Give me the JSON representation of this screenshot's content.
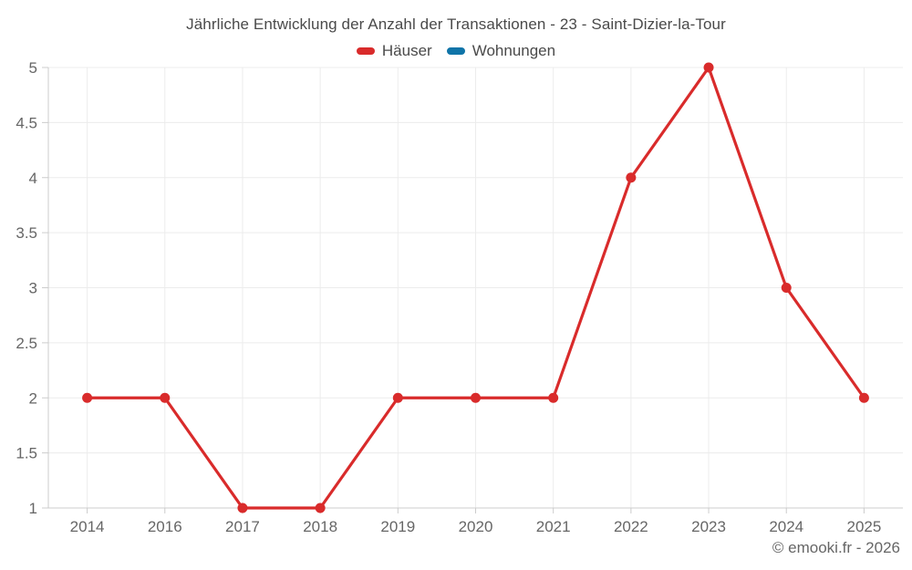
{
  "title": "Jährliche Entwicklung der Anzahl der Transaktionen - 23 - Saint-Dizier-la-Tour",
  "copyright": "© emooki.fr - 2026",
  "legend": {
    "marker_shape": "rounded-rect",
    "items": [
      {
        "label": "Häuser",
        "color": "#d92b2b"
      },
      {
        "label": "Wohnungen",
        "color": "#0f74a8"
      }
    ]
  },
  "chart_data": {
    "type": "line",
    "title": "Jährliche Entwicklung der Anzahl der Transaktionen - 23 - Saint-Dizier-la-Tour",
    "xlabel": "",
    "ylabel": "",
    "categories": [
      "2014",
      "2016",
      "2017",
      "2018",
      "2019",
      "2020",
      "2021",
      "2022",
      "2023",
      "2024",
      "2025"
    ],
    "series": [
      {
        "name": "Häuser",
        "color": "#d92b2b",
        "values": [
          2,
          2,
          1,
          1,
          2,
          2,
          2,
          4,
          5,
          3,
          2
        ]
      },
      {
        "name": "Wohnungen",
        "color": "#0f74a8",
        "values": []
      }
    ],
    "ylim": [
      1,
      5
    ],
    "ytick_step": 0.5,
    "ytick_labels": [
      "1",
      "1.5",
      "2",
      "2.5",
      "3",
      "3.5",
      "4",
      "4.5",
      "5"
    ],
    "grid": true,
    "legend_position": "top",
    "colors": {
      "grid": "#ececec",
      "axis": "#cccccc",
      "tick_label": "#666666",
      "title": "#4a4a4a",
      "background": "#ffffff"
    }
  }
}
